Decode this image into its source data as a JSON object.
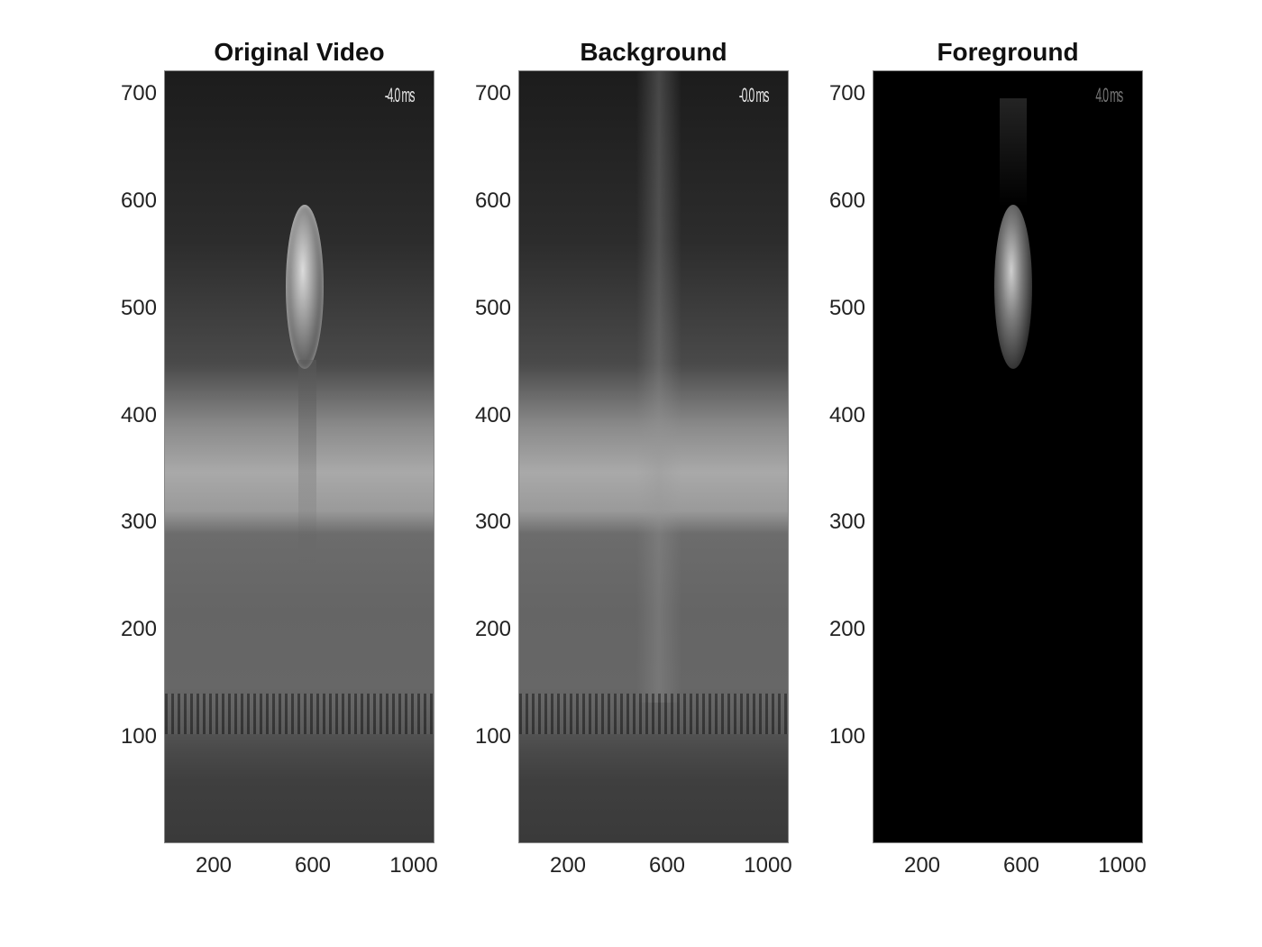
{
  "panels": [
    {
      "title": "Original Video",
      "timestamp": "-4.0 ms"
    },
    {
      "title": "Background",
      "timestamp": "-0.0 ms"
    },
    {
      "title": "Foreground",
      "timestamp": "4.0 ms"
    }
  ],
  "y_ticks": [
    "700",
    "600",
    "500",
    "400",
    "300",
    "200",
    "100"
  ],
  "x_ticks": [
    "200",
    "600",
    "1000"
  ],
  "colors": {
    "frame_dark": "#101010",
    "frame_mid": "#6a6a6a",
    "frame_light": "#a8a8a8",
    "foreground_bg": "#000000"
  }
}
